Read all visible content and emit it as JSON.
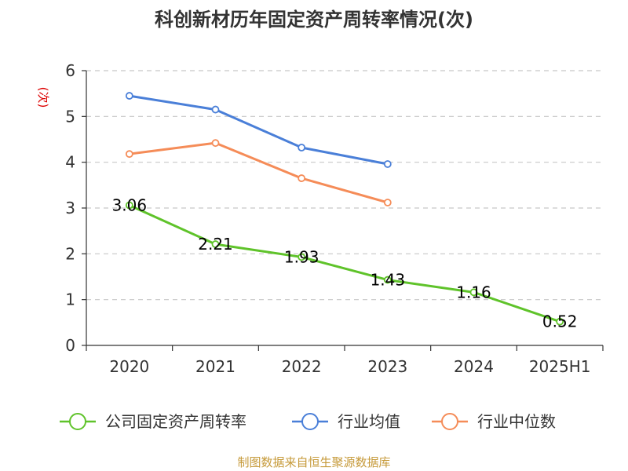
{
  "chart_data": {
    "type": "line",
    "title": "科创新材历年固定资产周转率情况(次)",
    "ylabel": "(次)",
    "xlabel": "",
    "categories": [
      "2020",
      "2021",
      "2022",
      "2023",
      "2024",
      "2025H1"
    ],
    "ylim": [
      0,
      6
    ],
    "yticks": [
      "0",
      "1",
      "2",
      "3",
      "4",
      "5",
      "6"
    ],
    "grid": true,
    "legend_position": "bottom",
    "series": [
      {
        "name": "公司固定资产周转率",
        "color": "#5fc32a",
        "values": [
          3.06,
          2.21,
          1.93,
          1.43,
          1.16,
          0.52
        ],
        "labels": [
          "3.06",
          "2.21",
          "1.93",
          "1.43",
          "1.16",
          "0.52"
        ]
      },
      {
        "name": "行业均值",
        "color": "#4a7fd8",
        "values": [
          5.45,
          5.15,
          4.32,
          3.96,
          null,
          null
        ]
      },
      {
        "name": "行业中位数",
        "color": "#f58c58",
        "values": [
          4.18,
          4.42,
          3.65,
          3.12,
          null,
          null
        ]
      }
    ],
    "source": "制图数据来自恒生聚源数据库"
  }
}
